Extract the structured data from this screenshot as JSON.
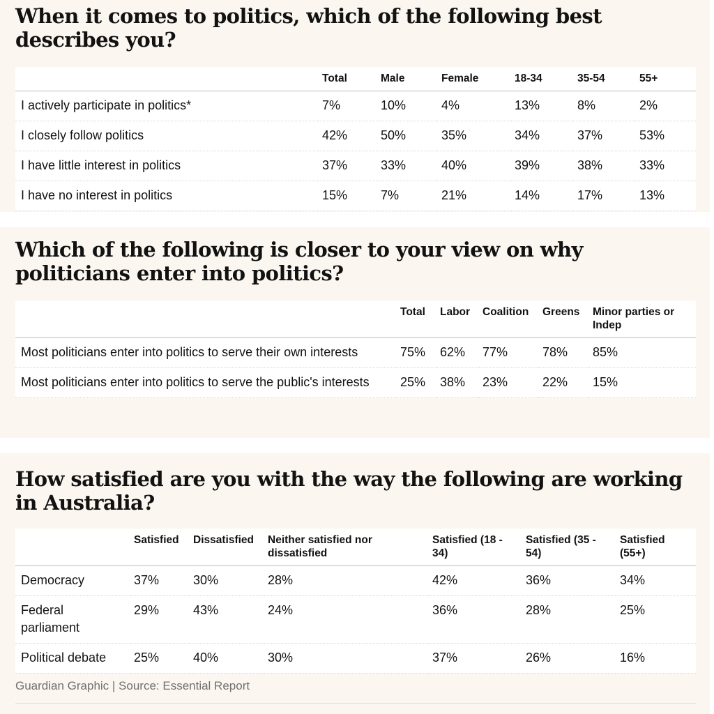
{
  "section1": {
    "title": "When it comes to politics, which of the following best describes you?",
    "headers": [
      "",
      "Total",
      "Male",
      "Female",
      "18-34",
      "35-54",
      "55+"
    ],
    "rows": [
      [
        "I actively participate in politics*",
        "7%",
        "10%",
        "4%",
        "13%",
        "8%",
        "2%"
      ],
      [
        "I closely follow politics",
        "42%",
        "50%",
        "35%",
        "34%",
        "37%",
        "53%"
      ],
      [
        "I have little interest in politics",
        "37%",
        "33%",
        "40%",
        "39%",
        "38%",
        "33%"
      ],
      [
        "I have no interest in politics",
        "15%",
        "7%",
        "21%",
        "14%",
        "17%",
        "13%"
      ]
    ]
  },
  "section2": {
    "title": "Which of the following is closer to your view on why politicians enter into politics?",
    "headers": [
      "",
      "Total",
      "Labor",
      "Coalition",
      "Greens",
      "Minor parties or Indep"
    ],
    "rows": [
      [
        "Most politicians enter into politics to serve their own interests",
        "75%",
        "62%",
        "77%",
        "78%",
        "85%"
      ],
      [
        "Most politicians enter into politics to serve the public's interests",
        "25%",
        "38%",
        "23%",
        "22%",
        "15%"
      ]
    ]
  },
  "section3": {
    "title": "How satisfied are you with the way the following are working in Australia?",
    "headers": [
      "",
      "Satisfied",
      "Dissatisfied",
      "Neither satisfied nor dissatisfied",
      "Satisfied (18 - 34)",
      "Satisfied (35 - 54)",
      "Satisfied (55+)"
    ],
    "rows": [
      [
        "Democracy",
        "37%",
        "30%",
        "28%",
        "42%",
        "36%",
        "34%"
      ],
      [
        "Federal parliament",
        "29%",
        "43%",
        "24%",
        "36%",
        "28%",
        "25%"
      ],
      [
        "Political debate",
        "25%",
        "40%",
        "30%",
        "37%",
        "26%",
        "16%"
      ]
    ]
  },
  "footer": {
    "source": "Guardian Graphic | Source: Essential Report"
  },
  "colors": {
    "panel_background": "#fbf6ef",
    "table_background": "#ffffff",
    "source_text": "#707070"
  }
}
